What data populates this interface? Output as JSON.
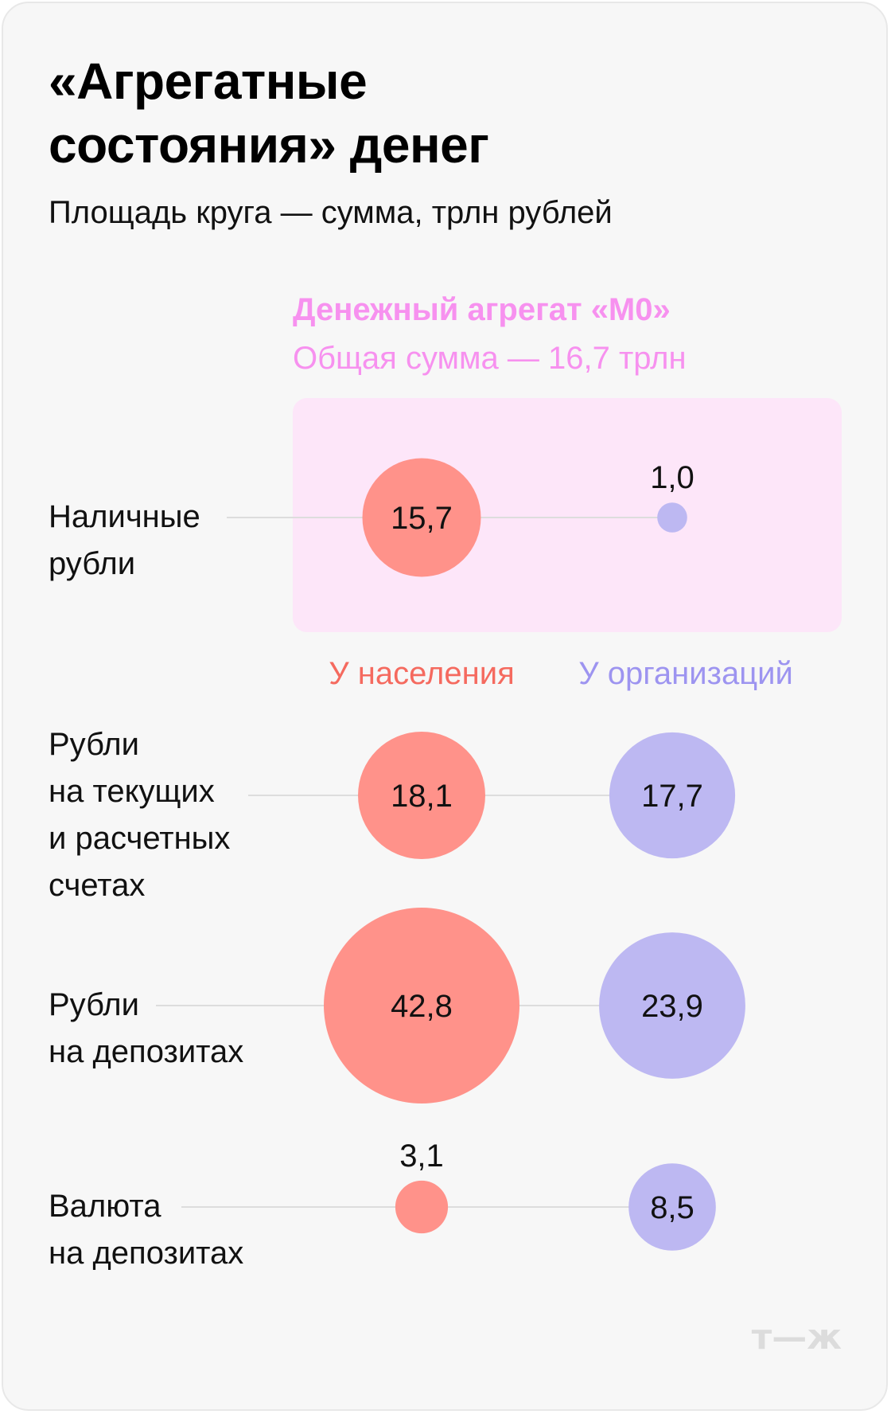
{
  "title_lines": [
    "«Агрегатные",
    "состояния» денег"
  ],
  "subtitle": "Площадь круга — сумма, трлн рублей",
  "logo": "т—ж",
  "colors": {
    "population": "#ff928a",
    "organizations": "#bdb8f2",
    "population_label": "#f56a5f",
    "organizations_label": "#9d94f0",
    "m0_text": "#f791ef",
    "m0_box": "#fde6f9",
    "connector": "#dddddd"
  },
  "chart_data": {
    "type": "bubble",
    "title": "«Агрегатные состояния» денег",
    "subtitle": "Площадь круга — сумма, трлн рублей",
    "highlight": {
      "title": "Денежный агрегат «М0»",
      "subtitle": "Общая сумма — 16,7 трлн",
      "rows": [
        0
      ]
    },
    "columns": [
      "У населения",
      "У организаций"
    ],
    "rows": [
      {
        "label": [
          "Наличные",
          "рубли"
        ],
        "values": [
          15.7,
          1.0
        ],
        "labels": [
          "15,7",
          "1,0"
        ]
      },
      {
        "label": [
          "Рубли",
          "на текущих",
          "и расчетных",
          "счетах"
        ],
        "values": [
          18.1,
          17.7
        ],
        "labels": [
          "18,1",
          "17,7"
        ]
      },
      {
        "label": [
          "Рубли",
          "на депозитах"
        ],
        "values": [
          42.8,
          23.9
        ],
        "labels": [
          "42,8",
          "23,9"
        ]
      },
      {
        "label": [
          "Валюта",
          "на депозитах"
        ],
        "values": [
          3.1,
          8.5
        ],
        "labels": [
          "3,1",
          "8,5"
        ]
      }
    ]
  }
}
